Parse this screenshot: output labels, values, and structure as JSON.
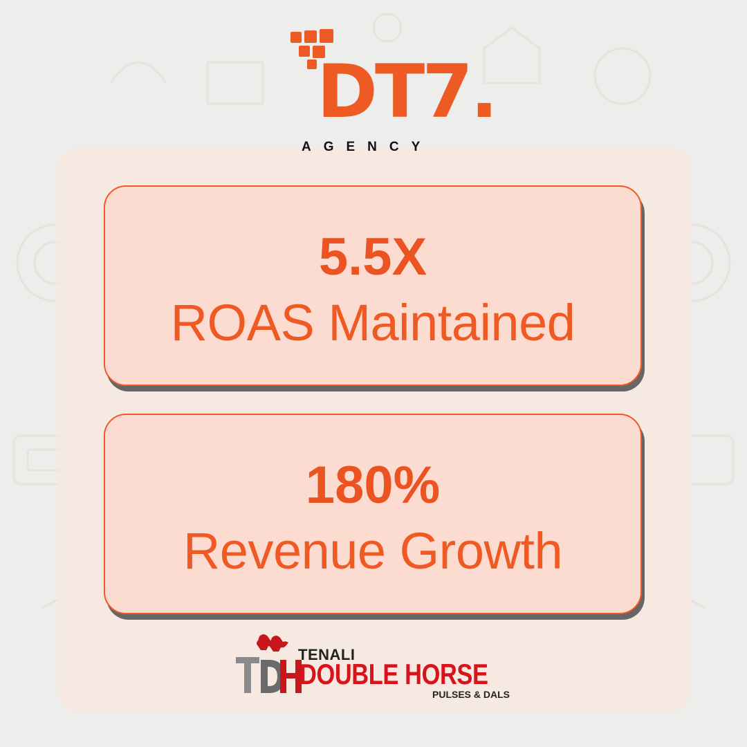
{
  "agency_logo": {
    "mark_text": "DT7.",
    "sub_text": "AGENCY",
    "accent_color": "#ee5a23"
  },
  "stats": [
    {
      "value": "5.5X",
      "label": "ROAS Maintained"
    },
    {
      "value": "180%",
      "label": "Revenue Growth"
    }
  ],
  "client_logo": {
    "icon": "double-horse-icon",
    "pre_text": "TENALI",
    "brand_text": "DOUBLE HORSE",
    "tagline": "PULSES & DALS",
    "brand_color": "#d8131b"
  },
  "colors": {
    "card_fill": "#fcdcd0",
    "card_border": "#ef5a24",
    "card_shadow": "#666666",
    "background": "#ededeb"
  }
}
